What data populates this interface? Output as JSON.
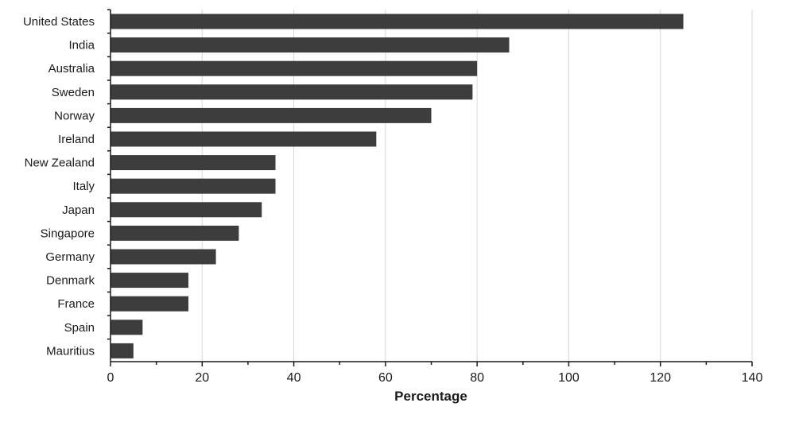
{
  "chart_data": {
    "type": "bar",
    "orientation": "horizontal",
    "title": "",
    "xlabel": "Percentage",
    "ylabel": "",
    "xlim": [
      0,
      140
    ],
    "xticks": [
      0,
      20,
      40,
      60,
      80,
      100,
      120,
      140
    ],
    "grid": true,
    "bar_color": "#3d3d3d",
    "categories": [
      "United States",
      "India",
      "Australia",
      "Sweden",
      "Norway",
      "Ireland",
      "New Zealand",
      "Italy",
      "Japan",
      "Singapore",
      "Germany",
      "Denmark",
      "France",
      "Spain",
      "Mauritius"
    ],
    "values": [
      125,
      87,
      80,
      79,
      70,
      58,
      36,
      36,
      33,
      28,
      23,
      17,
      17,
      7,
      5
    ]
  }
}
